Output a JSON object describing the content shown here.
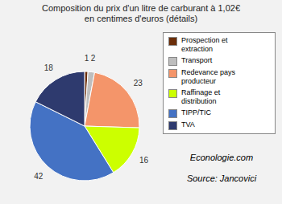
{
  "chart_data": {
    "type": "pie",
    "title": "Composition du prix d'un litre de carburant à 1,02€\nen centimes d'euros (détails)",
    "categories": [
      "Prospection et\nextraction",
      "Transport",
      "Redevance pays\nproducteur",
      "Raffinage et\ndistribution",
      "TIPP/TIC",
      "TVA"
    ],
    "values": [
      1,
      2,
      23,
      16,
      42,
      18
    ],
    "colors": [
      "#6B2E0A",
      "#BEBEBE",
      "#F4956A",
      "#CCFF00",
      "#4472C4",
      "#2E3A6E"
    ],
    "data_labels": true,
    "legend": "right",
    "annotations": [
      "Econologie.com",
      "Source: Jancovici"
    ]
  }
}
